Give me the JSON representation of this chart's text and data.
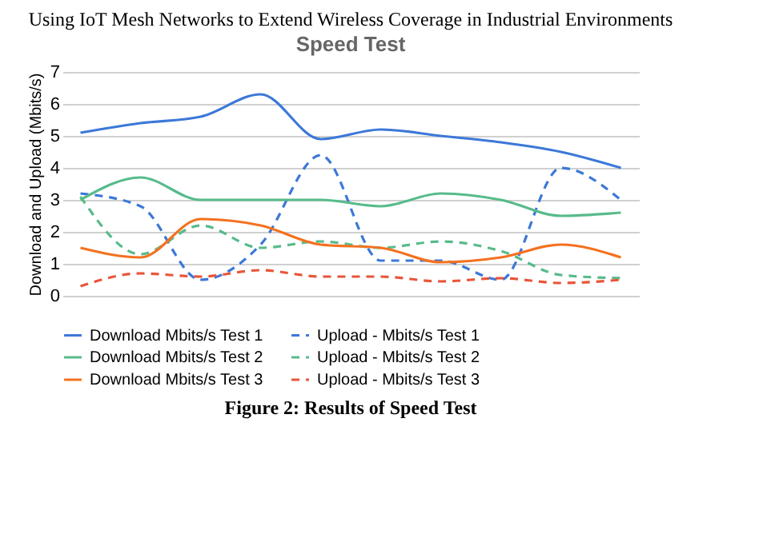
{
  "chart_data": {
    "type": "line",
    "title": "Speed Test",
    "ylabel": "Download and Upload (Mbits/s)",
    "annotations": [
      "Using IoT Mesh Networks to Extend Wireless Coverage in Industrial Environments",
      "Figure 2: Results of Speed Test"
    ],
    "categories": [
      null,
      null,
      null,
      null,
      null,
      null,
      null,
      null,
      null,
      null
    ],
    "ylim": [
      0,
      7
    ],
    "yticks": [
      0,
      1,
      2,
      3,
      4,
      5,
      6,
      7
    ],
    "grid": "y",
    "legend": "bottom",
    "tick_labels": "y",
    "series": [
      {
        "name": "Download Mbits/s Test 1",
        "color": "#3c78d8",
        "line_style": "solid",
        "values": [
          5.1,
          5.4,
          5.6,
          6.3,
          4.9,
          5.2,
          5.0,
          4.8,
          4.5,
          4.0
        ]
      },
      {
        "name": "Upload - Mbits/s Test 1",
        "color": "#3c78d8",
        "line_style": "dashed",
        "values": [
          3.2,
          2.8,
          0.5,
          1.6,
          4.4,
          1.1,
          1.1,
          0.5,
          4.0,
          3.0
        ]
      },
      {
        "name": "Download Mbits/s Test 2",
        "color": "#57bb8a",
        "line_style": "solid",
        "values": [
          3.0,
          3.7,
          3.0,
          3.0,
          3.0,
          2.8,
          3.2,
          3.0,
          2.5,
          2.6
        ]
      },
      {
        "name": "Upload - Mbits/s Test 2",
        "color": "#57bb8a",
        "line_style": "dashed",
        "values": [
          3.1,
          1.3,
          2.2,
          1.5,
          1.7,
          1.5,
          1.7,
          1.4,
          0.65,
          0.55
        ]
      },
      {
        "name": "Download Mbits/s Test 3",
        "color": "#f4711f",
        "line_style": "solid",
        "values": [
          1.5,
          1.2,
          2.4,
          2.2,
          1.6,
          1.5,
          1.05,
          1.2,
          1.6,
          1.2
        ]
      },
      {
        "name": "Upload - Mbits/s Test 3",
        "color": "#e8553a",
        "line_style": "dashed",
        "values": [
          0.3,
          0.7,
          0.6,
          0.8,
          0.6,
          0.6,
          0.45,
          0.55,
          0.4,
          0.5
        ]
      }
    ]
  }
}
